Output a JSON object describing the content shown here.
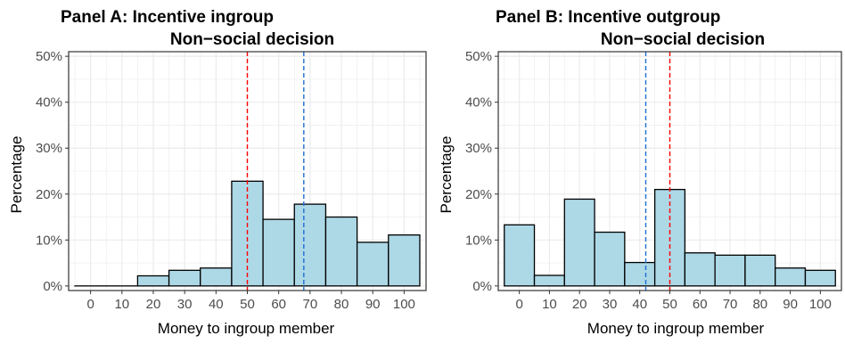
{
  "chart_data": [
    {
      "type": "bar",
      "title_line1": "Panel A: Incentive ingroup",
      "title_line2": "Non−social decision",
      "xlabel": "Money to ingroup member",
      "ylabel": "Percentage",
      "x": [
        0,
        10,
        20,
        30,
        40,
        50,
        60,
        70,
        80,
        90,
        100
      ],
      "values": [
        0.0,
        0.0,
        2.2,
        3.4,
        3.9,
        22.8,
        14.5,
        17.8,
        15.0,
        9.5,
        11.1
      ],
      "bar_color": "#add8e6",
      "reference_lines": [
        {
          "x": 50,
          "color": "#ff0000",
          "style": "dashed"
        },
        {
          "x": 68,
          "color": "#1f6ed4",
          "style": "dashed"
        }
      ],
      "xticks": [
        "0",
        "10",
        "20",
        "30",
        "40",
        "50",
        "60",
        "70",
        "80",
        "90",
        "100"
      ],
      "yticks": [
        "0%",
        "10%",
        "20%",
        "30%",
        "40%",
        "50%"
      ],
      "xlim": [
        -7,
        107
      ],
      "ylim": [
        -1,
        51
      ],
      "grid": true
    },
    {
      "type": "bar",
      "title_line1": "Panel B: Incentive outgroup",
      "title_line2": "Non−social decision",
      "xlabel": "Money to ingroup member",
      "ylabel": "Percentage",
      "x": [
        0,
        10,
        20,
        30,
        40,
        50,
        60,
        70,
        80,
        90,
        100
      ],
      "values": [
        13.3,
        2.3,
        18.9,
        11.7,
        5.1,
        21.0,
        7.2,
        6.7,
        6.7,
        3.9,
        3.4
      ],
      "bar_color": "#add8e6",
      "reference_lines": [
        {
          "x": 42,
          "color": "#1f6ed4",
          "style": "dashed"
        },
        {
          "x": 50,
          "color": "#ff0000",
          "style": "dashed"
        }
      ],
      "xticks": [
        "0",
        "10",
        "20",
        "30",
        "40",
        "50",
        "60",
        "70",
        "80",
        "90",
        "100"
      ],
      "yticks": [
        "0%",
        "10%",
        "20%",
        "30%",
        "40%",
        "50%"
      ],
      "xlim": [
        -7,
        107
      ],
      "ylim": [
        -1,
        51
      ],
      "grid": true
    }
  ]
}
